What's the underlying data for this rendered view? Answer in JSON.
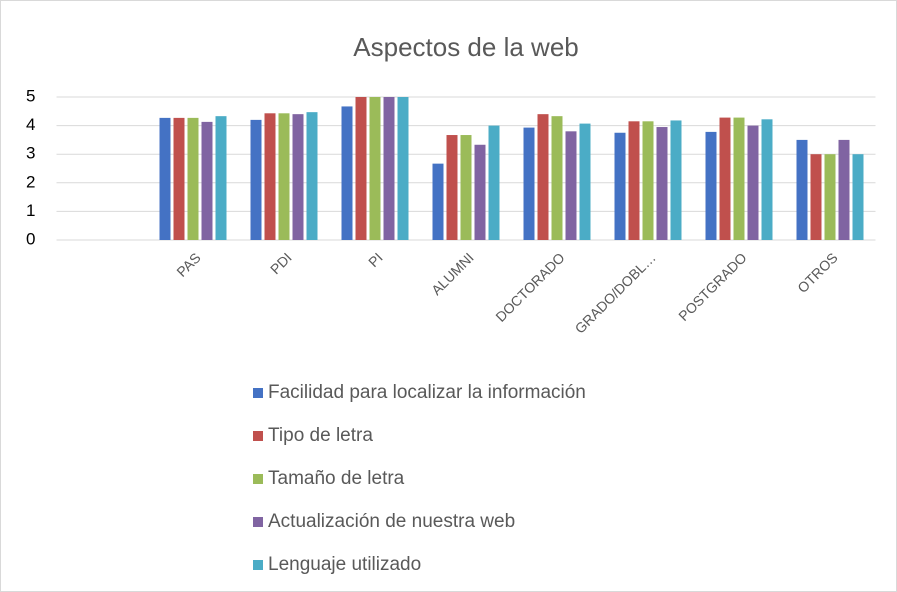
{
  "chart_data": {
    "type": "bar",
    "title": "Aspectos de la web",
    "categories": [
      null,
      "PAS",
      "PDI",
      "PI",
      "ALUMNI",
      "DOCTORADO",
      "GRADO/DOBL…",
      "POSTGRADO",
      "OTROS"
    ],
    "series": [
      {
        "name": "Facilidad para localizar la información",
        "color": "#4472c4",
        "values": [
          null,
          4.27,
          4.2,
          4.67,
          2.67,
          3.93,
          3.75,
          3.78,
          3.5
        ]
      },
      {
        "name": "Tipo de letra",
        "color": "#c0504d",
        "values": [
          null,
          4.27,
          4.43,
          5,
          3.67,
          4.4,
          4.15,
          4.28,
          3.0
        ]
      },
      {
        "name": "Tamaño de letra",
        "color": "#9bbb59",
        "values": [
          null,
          4.27,
          4.43,
          5,
          3.67,
          4.33,
          4.15,
          4.28,
          3.0
        ]
      },
      {
        "name": "Actualización de nuestra web",
        "color": "#8064a2",
        "values": [
          null,
          4.13,
          4.4,
          5,
          3.33,
          3.8,
          3.95,
          4.0,
          3.5
        ]
      },
      {
        "name": "Lenguaje utilizado",
        "color": "#4bacc6",
        "values": [
          null,
          4.33,
          4.47,
          5,
          4.0,
          4.07,
          4.18,
          4.22,
          3.0
        ]
      }
    ],
    "ylim": [
      0,
      5
    ],
    "yticks": [
      0,
      1,
      2,
      3,
      4,
      5
    ],
    "grid": true,
    "legend": "bottom"
  }
}
